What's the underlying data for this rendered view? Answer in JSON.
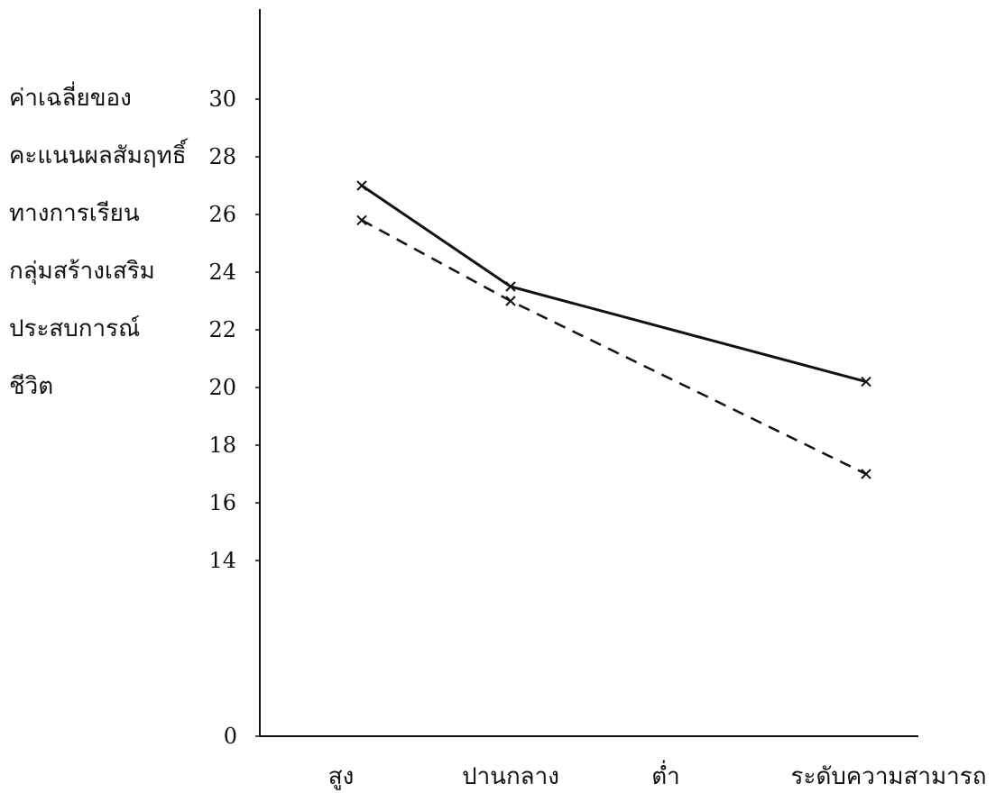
{
  "chart_data": {
    "type": "line",
    "ylabel_lines": [
      "ค่าเฉลี่ยของ",
      "คะแนนผลสัมฤทธิ์",
      "ทางการเรียน",
      "กลุ่มสร้างเสริม",
      "ประสบการณ์",
      "ชีวิต"
    ],
    "categories": [
      "สูง",
      "ปานกลาง",
      "ต่ำ"
    ],
    "xlabel": "ระดับความสามารถ",
    "y_ticks": [
      0,
      14,
      16,
      18,
      20,
      22,
      24,
      26,
      28,
      30
    ],
    "y_axis_break": true,
    "ylim": [
      12,
      33
    ],
    "grid": false,
    "series": [
      {
        "line_style": "solid",
        "values": [
          27.0,
          23.5,
          20.2
        ]
      },
      {
        "line_style": "dashed",
        "values": [
          25.8,
          23.0,
          17.0
        ]
      }
    ]
  }
}
